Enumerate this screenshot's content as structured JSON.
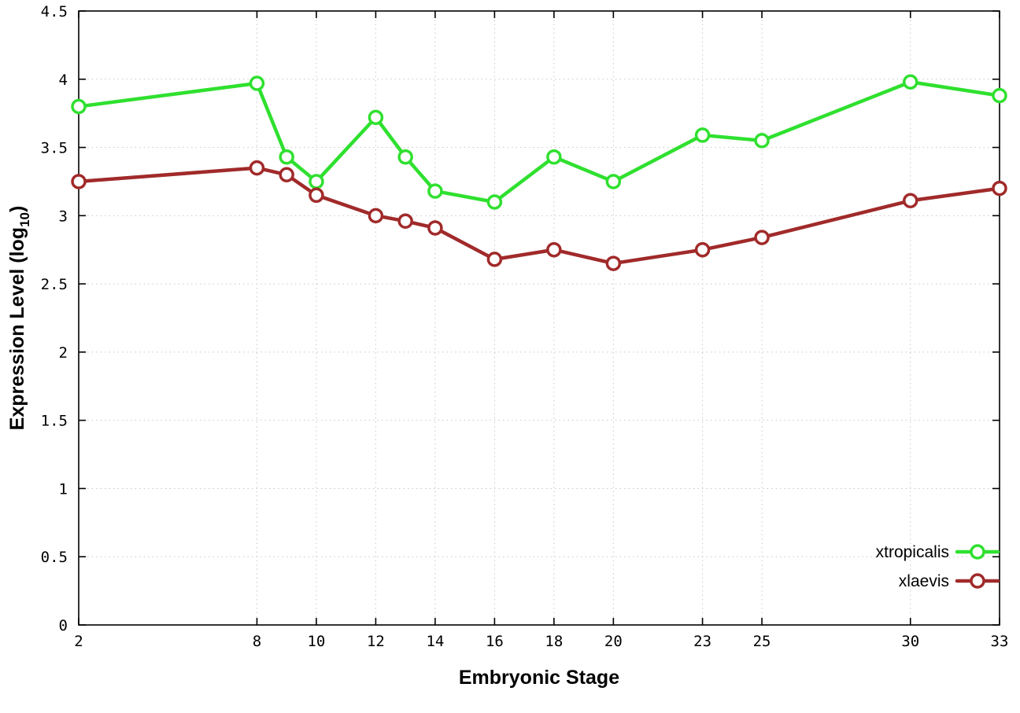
{
  "chart_data": {
    "type": "line",
    "title": "",
    "xlabel": "Embryonic Stage",
    "ylabel": {
      "prefix": "Expression Level (log",
      "sub": "10",
      "suffix": ")"
    },
    "xlim": [
      2,
      33
    ],
    "ylim": [
      0,
      4.5
    ],
    "xticks": [
      2,
      8,
      10,
      12,
      14,
      16,
      18,
      20,
      23,
      25,
      30,
      33
    ],
    "yticks": [
      0,
      0.5,
      1,
      1.5,
      2,
      2.5,
      3,
      3.5,
      4,
      4.5
    ],
    "grid": true,
    "legend_position": "bottom-right",
    "x": [
      2,
      8,
      9,
      10,
      12,
      13,
      14,
      16,
      18,
      20,
      23,
      25,
      30,
      33
    ],
    "series": [
      {
        "name": "xtropicalis",
        "color": "#2fe02f",
        "marker": "open-circle",
        "values": [
          3.8,
          3.97,
          3.43,
          3.25,
          3.72,
          3.43,
          3.18,
          3.1,
          3.43,
          3.25,
          3.59,
          3.55,
          3.98,
          3.88
        ]
      },
      {
        "name": "xlaevis",
        "color": "#a12a2a",
        "marker": "open-circle",
        "values": [
          3.25,
          3.35,
          3.3,
          3.15,
          3.0,
          2.96,
          2.91,
          2.68,
          2.75,
          2.65,
          2.75,
          2.84,
          3.11,
          3.2
        ]
      }
    ],
    "style": {
      "grid_color": "#c8c8c8",
      "border_color": "#000000",
      "background": "#ffffff",
      "line_width": 4.5,
      "marker_radius": 8,
      "marker_stroke": 3.5
    }
  }
}
